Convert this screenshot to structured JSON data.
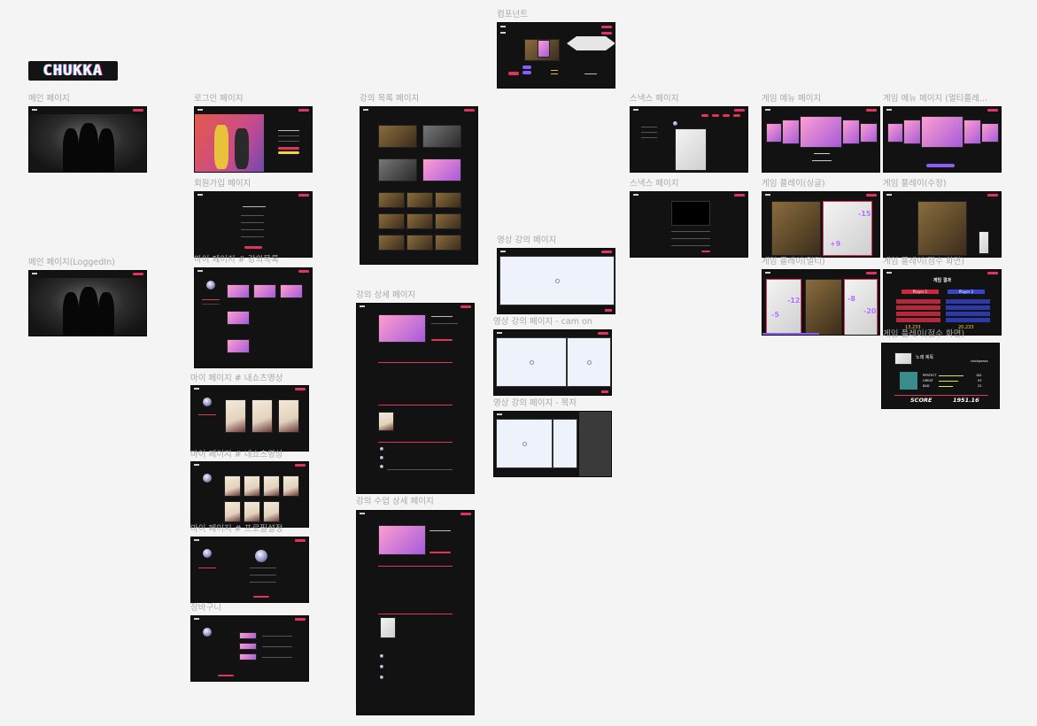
{
  "brand": {
    "logo": "CHUKKA"
  },
  "frames": {
    "component": "컴포넌트",
    "main": "메인 페이지",
    "main_loggedin": "메인 페이지(LoggedIn)",
    "login": "로그인 페이지",
    "signup": "회원가입 페이지",
    "my_courses": "마이 페이지 # 강의목록",
    "my_shorts1": "마이 페이지 # 내쇼츠영상",
    "my_shorts2": "마이 페이지 # 내쇼츠영상",
    "my_profile": "마이 페이지 # 프로필설정",
    "cart": "장바구니",
    "course_list": "강의 목록 페이지",
    "course_detail": "강의 상세 페이지",
    "class_detail": "강의 수업 상세 페이지",
    "video_lesson": "영상 강의 페이지",
    "video_cam": "영상 강의 페이지 - cam on",
    "video_toc": "영상 강의 페이지 - 목차",
    "snacks": "스낵스 페이지",
    "snacks2": "스낵스 페이지",
    "game_menu": "게임 메뉴 페이지",
    "game_menu_multi": "게임 메뉴 페이지 (멀티플레...",
    "game_single": "게임 플레이(싱글)",
    "game_edit": "게임 플레이(수정)",
    "game_multi": "게임 플레이(멀티)",
    "game_score": "게임 플레이(점수 화면)",
    "game_result": "게임 플레이(점수 화면)"
  },
  "game_single": {
    "num1": "-15",
    "num2": "+9"
  },
  "game_multi": {
    "num1": "-12",
    "num2": "-5",
    "num3": "-8",
    "num4": "-20"
  },
  "game_score": {
    "title": "게임 결과",
    "player1": "Player 1",
    "player2": "Player 2",
    "rows": [
      "PER",
      "GREAT",
      "GOOD",
      "BAD",
      "MISS"
    ],
    "score_left": "13,233",
    "score_right": "20,233"
  },
  "game_result": {
    "song": "노래 제목",
    "artist": "chickpeace",
    "perfect_label": "PERFECT",
    "great_label": "GREAT",
    "bad_label": "BAD",
    "perfect_value": "181",
    "great_value": "93",
    "bad_value": "22",
    "score_label": "SCORE",
    "score_value": "1951.16"
  },
  "colors": {
    "accent": "#e0345a",
    "purple": "#b06cff",
    "background": "#f4f4f4",
    "frame": "#121212"
  }
}
